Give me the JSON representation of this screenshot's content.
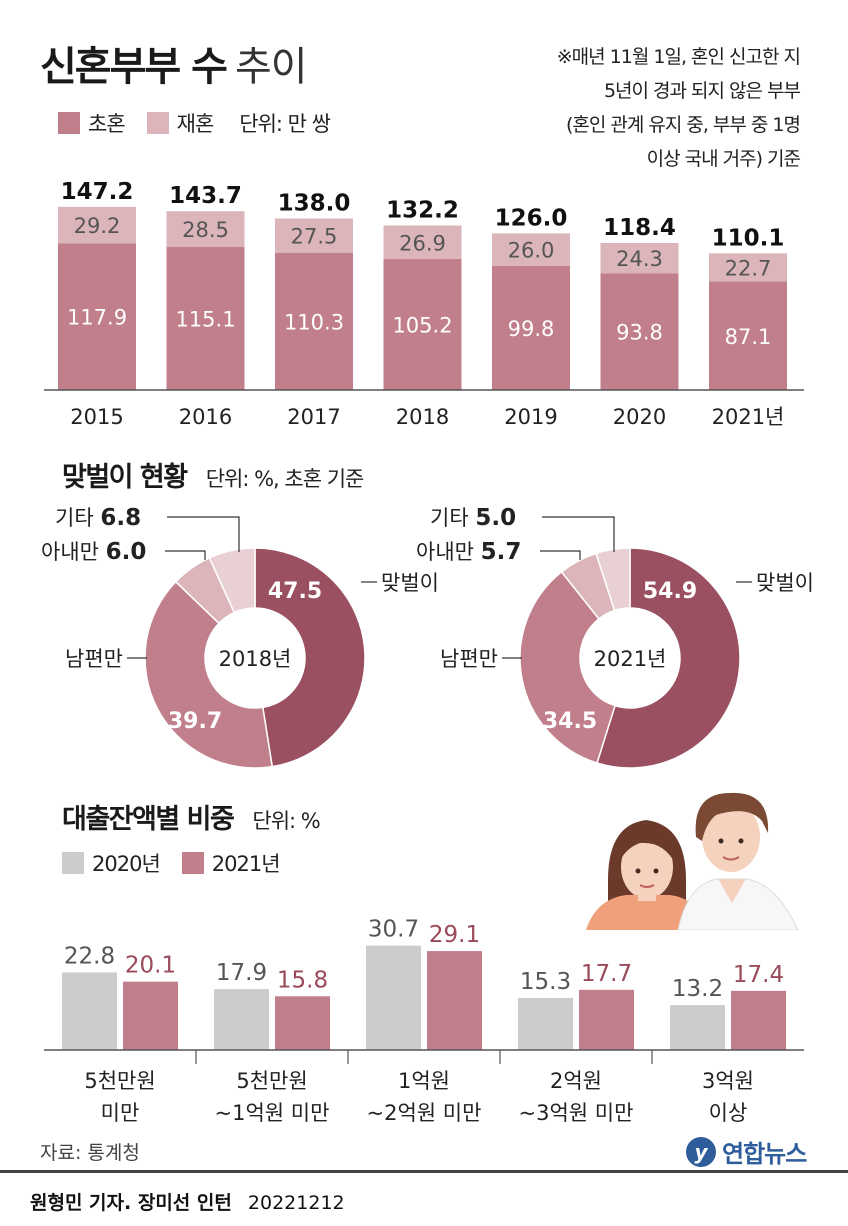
{
  "header": {
    "title_main": "신혼부부 수",
    "title_sub": "추이",
    "note_lines": [
      "※매년 11월 1일, 혼인 신고한 지",
      "5년이 경과 되지 않은 부부",
      "(혼인 관계 유지 중, 부부 중 1명",
      "이상 국내 거주) 기준"
    ]
  },
  "legend1": {
    "first": "초혼",
    "second": "재혼",
    "unit": "단위: 만 쌍"
  },
  "colors": {
    "first": "#c07f8b",
    "second": "#dcb5bb",
    "dual": "#9a5060",
    "husband": "#c07f8b",
    "wife": "#dcb5bb",
    "other": "#e8d0d3",
    "y2020": "#cccccc",
    "y2021": "#c07f8b",
    "accent_text": "#9a4a5a",
    "axis": "#555555"
  },
  "chart_data": [
    {
      "type": "bar",
      "stacked": true,
      "title": "신혼부부 수 추이",
      "unit": "단위: 만 쌍",
      "categories": [
        "2015",
        "2016",
        "2017",
        "2018",
        "2019",
        "2020",
        "2021년"
      ],
      "series": [
        {
          "name": "초혼",
          "values": [
            117.9,
            115.1,
            110.3,
            105.2,
            99.8,
            93.8,
            87.1
          ]
        },
        {
          "name": "재혼",
          "values": [
            29.2,
            28.5,
            27.5,
            26.9,
            26.0,
            24.3,
            22.7
          ]
        }
      ],
      "totals": [
        147.2,
        143.7,
        138.0,
        132.2,
        126.0,
        118.4,
        110.1
      ],
      "ylim": [
        0,
        150
      ]
    },
    {
      "type": "pie",
      "title": "맞벌이 현황",
      "unit": "단위: %, 초혼 기준",
      "charts": [
        {
          "center_label": "2018년",
          "slices": [
            {
              "label": "맞벌이",
              "value": 47.5
            },
            {
              "label": "남편만",
              "value": 39.7
            },
            {
              "label": "아내만",
              "value": 6.0
            },
            {
              "label": "기타",
              "value": 6.8
            }
          ]
        },
        {
          "center_label": "2021년",
          "slices": [
            {
              "label": "맞벌이",
              "value": 54.9
            },
            {
              "label": "남편만",
              "value": 34.5
            },
            {
              "label": "아내만",
              "value": 5.7
            },
            {
              "label": "기타",
              "value": 5.0
            }
          ]
        }
      ]
    },
    {
      "type": "bar",
      "title": "대출잔액별 비중",
      "unit": "단위: %",
      "categories": [
        [
          "5천만원",
          "미만"
        ],
        [
          "5천만원",
          "~1억원 미만"
        ],
        [
          "1억원",
          "~2억원 미만"
        ],
        [
          "2억원",
          "~3억원 미만"
        ],
        [
          "3억원",
          "이상"
        ]
      ],
      "series": [
        {
          "name": "2020년",
          "values": [
            22.8,
            17.9,
            30.7,
            15.3,
            13.2
          ]
        },
        {
          "name": "2021년",
          "values": [
            20.1,
            15.8,
            29.1,
            17.7,
            17.4
          ]
        }
      ],
      "ylim": [
        0,
        31
      ]
    }
  ],
  "footer": {
    "source": "자료: 통계청",
    "credit_bold": "원형민 기자. 장미선 인턴",
    "date": "20221212",
    "logo_mark": "y",
    "logo_text": "연합뉴스"
  }
}
